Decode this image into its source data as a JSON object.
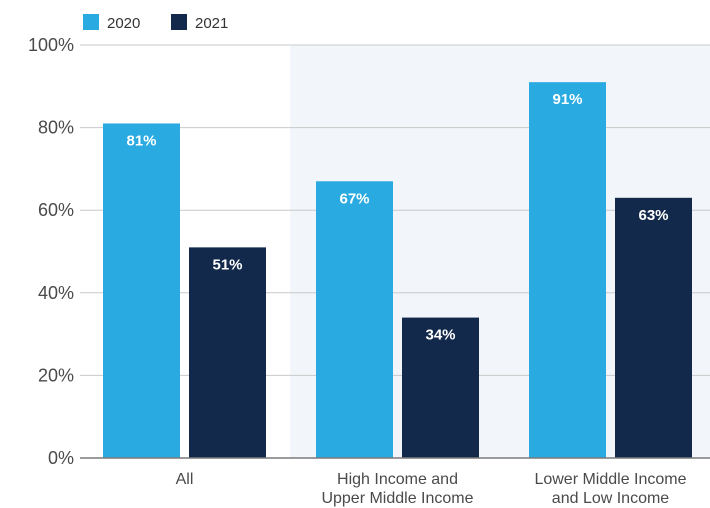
{
  "chart_data": {
    "type": "bar",
    "categories": [
      [
        "All"
      ],
      [
        "High Income and",
        "Upper Middle Income"
      ],
      [
        "Lower Middle Income",
        "and Low Income"
      ]
    ],
    "series": [
      {
        "name": "2020",
        "values": [
          81,
          67,
          91
        ],
        "labels": [
          "81%",
          "67%",
          "91%"
        ],
        "color": "#29aae1"
      },
      {
        "name": "2021",
        "values": [
          51,
          34,
          63
        ],
        "labels": [
          "51%",
          "34%",
          "63%"
        ],
        "color": "#13294b"
      }
    ],
    "ylim": [
      0,
      100
    ],
    "yticks": [
      0,
      20,
      40,
      60,
      80,
      100
    ],
    "ytick_labels": [
      "0%",
      "20%",
      "40%",
      "60%",
      "80%",
      "100%"
    ],
    "grid": true,
    "legend_position": "top-left",
    "highlight_region": {
      "from_category": 1,
      "to_category": 2,
      "color": "#f2f6fa"
    },
    "colors": {
      "gridline": "#c9c9c9",
      "axis": "#7a7a7a",
      "text": "#4a4a4a"
    }
  }
}
